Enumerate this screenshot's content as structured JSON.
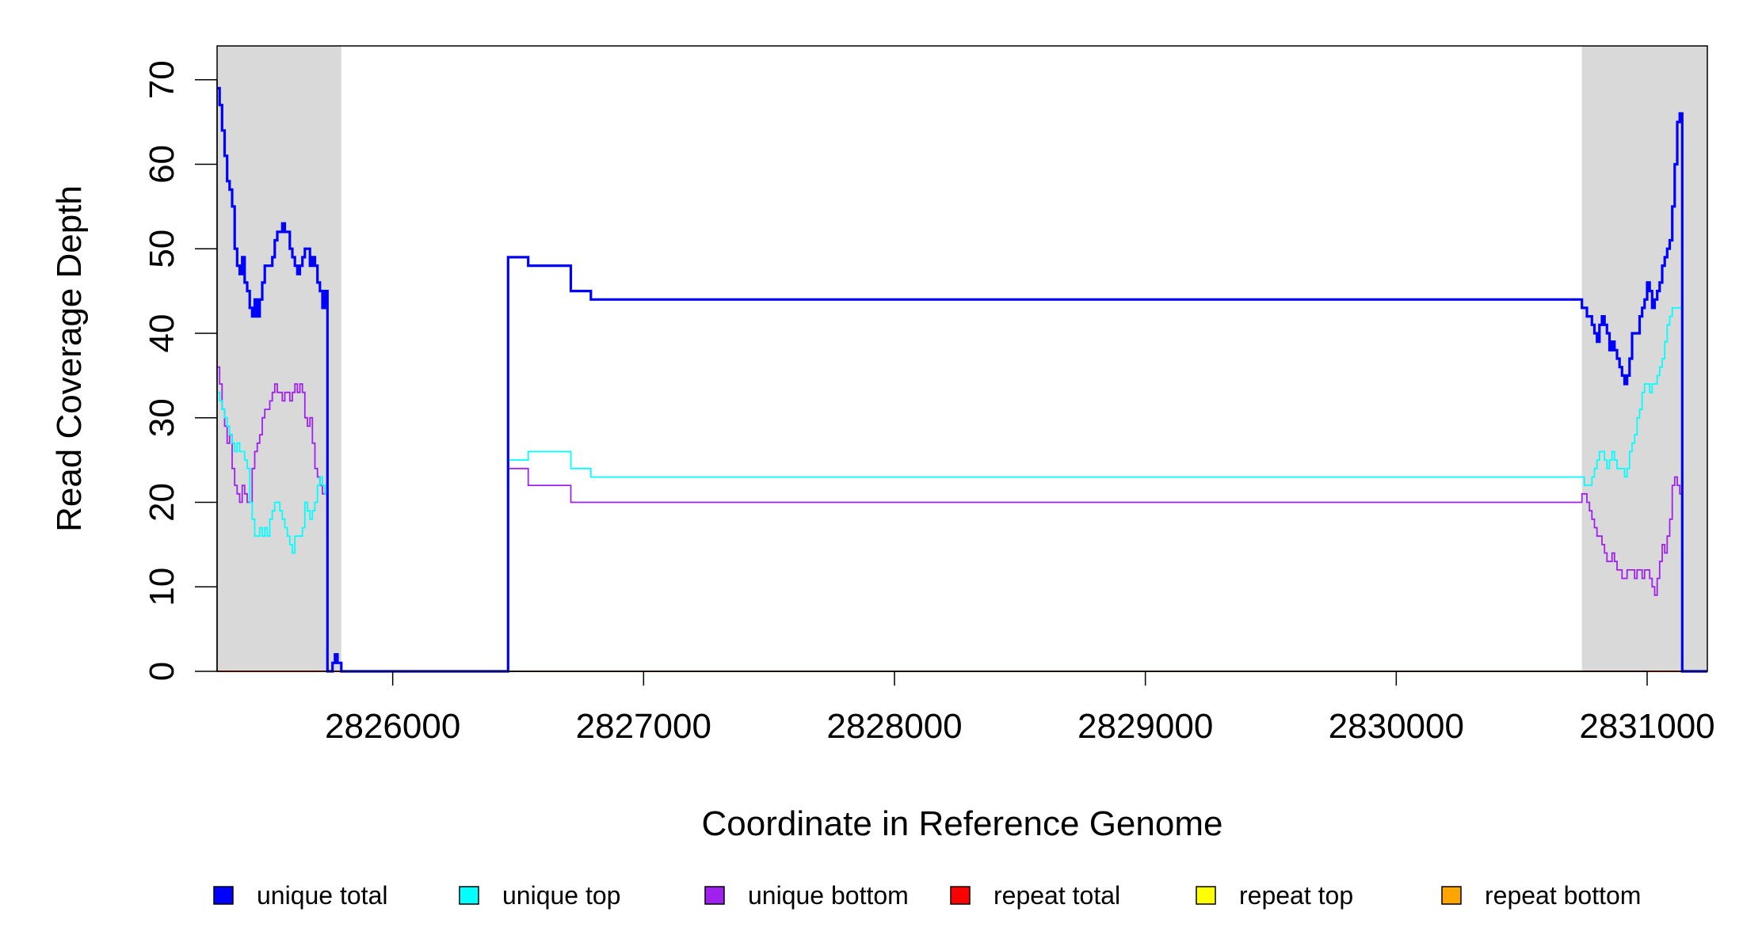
{
  "chart_data": {
    "type": "line",
    "xlabel": "Coordinate in Reference Genome",
    "ylabel": "Read Coverage Depth",
    "xlim": [
      2825300,
      2831240
    ],
    "ylim": [
      0,
      74
    ],
    "x_ticks": [
      2826000,
      2827000,
      2828000,
      2829000,
      2830000,
      2831000
    ],
    "y_ticks": [
      0,
      10,
      20,
      30,
      40,
      50,
      60,
      70
    ],
    "shaded_regions": [
      {
        "start": 2825300,
        "end": 2825795
      },
      {
        "start": 2830740,
        "end": 2831240
      }
    ],
    "colors": {
      "shade": "#d9d9d9",
      "unique_total": "#0000ff",
      "unique_top": "#00ffff",
      "unique_bottom": "#a020f0",
      "repeat_total": "#ff0000",
      "repeat_top": "#ffff00",
      "repeat_bottom": "#ffa500"
    },
    "legend": [
      {
        "label": "unique total",
        "color": "#0000ff"
      },
      {
        "label": "unique top",
        "color": "#00ffff"
      },
      {
        "label": "unique bottom",
        "color": "#a020f0"
      },
      {
        "label": "repeat total",
        "color": "#ff0000"
      },
      {
        "label": "repeat top",
        "color": "#ffff00"
      },
      {
        "label": "repeat bottom",
        "color": "#ffa500"
      }
    ],
    "series": [
      {
        "name": "unique total",
        "color": "#0000ff",
        "x": [
          2825300,
          2825310,
          2825320,
          2825330,
          2825340,
          2825350,
          2825360,
          2825370,
          2825380,
          2825390,
          2825400,
          2825410,
          2825420,
          2825430,
          2825440,
          2825450,
          2825460,
          2825470,
          2825480,
          2825490,
          2825500,
          2825510,
          2825520,
          2825530,
          2825540,
          2825550,
          2825560,
          2825570,
          2825580,
          2825590,
          2825600,
          2825610,
          2825620,
          2825630,
          2825640,
          2825650,
          2825660,
          2825670,
          2825680,
          2825690,
          2825700,
          2825710,
          2825720,
          2825730,
          2825740,
          2825750,
          2825760,
          2825770,
          2825780,
          2825795,
          2826460,
          2826540,
          2826710,
          2826790,
          2830740,
          2830750,
          2830760,
          2830770,
          2830780,
          2830790,
          2830800,
          2830810,
          2830820,
          2830830,
          2830840,
          2830850,
          2830860,
          2830870,
          2830880,
          2830890,
          2830900,
          2830910,
          2830920,
          2830930,
          2830940,
          2830950,
          2830960,
          2830970,
          2830980,
          2830990,
          2831000,
          2831010,
          2831020,
          2831030,
          2831040,
          2831050,
          2831060,
          2831070,
          2831080,
          2831090,
          2831100,
          2831110,
          2831120,
          2831130,
          2831140,
          2831150,
          2831160,
          2831170,
          2831180,
          2831190,
          2831200,
          2831210,
          2831220,
          2831230
        ],
        "y": [
          69,
          67,
          64,
          61,
          58,
          57,
          55,
          50,
          48,
          47,
          49,
          46,
          45,
          43,
          42,
          44,
          42,
          44,
          46,
          48,
          48,
          48,
          49,
          51,
          52,
          52,
          53,
          52,
          52,
          50,
          49,
          48,
          47,
          48,
          49,
          50,
          50,
          48,
          49,
          48,
          46,
          45,
          43,
          45,
          0,
          0,
          1,
          2,
          1,
          0,
          49,
          48,
          45,
          44,
          43,
          43,
          42,
          42,
          41,
          40,
          39,
          41,
          42,
          41,
          40,
          38,
          39,
          38,
          37,
          36,
          35,
          34,
          35,
          37,
          40,
          40,
          40,
          42,
          43,
          44,
          46,
          45,
          43,
          44,
          45,
          46,
          48,
          49,
          50,
          51,
          55,
          60,
          65,
          66,
          0,
          0,
          0,
          0,
          0,
          0,
          0,
          0,
          0,
          0
        ]
      },
      {
        "name": "unique top",
        "color": "#00ffff",
        "x": [
          2825300,
          2825310,
          2825320,
          2825330,
          2825340,
          2825350,
          2825360,
          2825370,
          2825380,
          2825390,
          2825400,
          2825410,
          2825420,
          2825430,
          2825440,
          2825450,
          2825460,
          2825470,
          2825480,
          2825490,
          2825500,
          2825510,
          2825520,
          2825530,
          2825540,
          2825550,
          2825560,
          2825570,
          2825580,
          2825590,
          2825600,
          2825610,
          2825620,
          2825630,
          2825640,
          2825650,
          2825660,
          2825670,
          2825680,
          2825690,
          2825700,
          2825710,
          2825720,
          2825730,
          2825740,
          2825750,
          2825760,
          2825770,
          2825780,
          2825795,
          2826460,
          2826540,
          2826710,
          2826790,
          2830740,
          2830750,
          2830760,
          2830770,
          2830780,
          2830790,
          2830800,
          2830810,
          2830820,
          2830830,
          2830840,
          2830850,
          2830860,
          2830870,
          2830880,
          2830890,
          2830900,
          2830910,
          2830920,
          2830930,
          2830940,
          2830950,
          2830960,
          2830970,
          2830980,
          2830990,
          2831000,
          2831010,
          2831020,
          2831030,
          2831040,
          2831050,
          2831060,
          2831070,
          2831080,
          2831090,
          2831100,
          2831110,
          2831120,
          2831130,
          2831140,
          2831150,
          2831160,
          2831170,
          2831180,
          2831190,
          2831200,
          2831210,
          2831220,
          2831230
        ],
        "y": [
          33,
          32,
          31,
          30,
          29,
          28,
          27,
          26,
          27,
          26,
          26,
          25,
          24,
          20,
          18,
          16,
          16,
          17,
          16,
          17,
          16,
          18,
          19,
          20,
          20,
          19,
          18,
          17,
          16,
          15,
          14,
          16,
          16,
          16,
          17,
          20,
          19,
          18,
          19,
          20,
          22,
          23,
          22,
          21,
          0,
          0,
          1,
          1,
          1,
          0,
          25,
          26,
          24,
          23,
          23,
          22,
          22,
          22,
          23,
          24,
          25,
          26,
          26,
          25,
          24,
          25,
          26,
          25,
          24,
          24,
          24,
          23,
          24,
          26,
          27,
          28,
          30,
          31,
          33,
          34,
          34,
          33,
          34,
          34,
          35,
          36,
          37,
          39,
          41,
          42,
          43,
          43,
          43,
          43,
          0,
          0,
          0,
          0,
          0,
          0,
          0,
          0,
          0,
          0
        ]
      },
      {
        "name": "unique bottom",
        "color": "#a020f0",
        "x": [
          2825300,
          2825310,
          2825320,
          2825330,
          2825340,
          2825350,
          2825360,
          2825370,
          2825380,
          2825390,
          2825400,
          2825410,
          2825420,
          2825430,
          2825440,
          2825450,
          2825460,
          2825470,
          2825480,
          2825490,
          2825500,
          2825510,
          2825520,
          2825530,
          2825540,
          2825550,
          2825560,
          2825570,
          2825580,
          2825590,
          2825600,
          2825610,
          2825620,
          2825630,
          2825640,
          2825650,
          2825660,
          2825670,
          2825680,
          2825690,
          2825700,
          2825710,
          2825720,
          2825730,
          2825740,
          2825750,
          2825760,
          2825770,
          2825780,
          2825795,
          2826460,
          2826540,
          2826710,
          2826790,
          2830740,
          2830750,
          2830760,
          2830770,
          2830780,
          2830790,
          2830800,
          2830810,
          2830820,
          2830830,
          2830840,
          2830850,
          2830860,
          2830870,
          2830880,
          2830890,
          2830900,
          2830910,
          2830920,
          2830930,
          2830940,
          2830950,
          2830960,
          2830970,
          2830980,
          2830990,
          2831000,
          2831010,
          2831020,
          2831030,
          2831040,
          2831050,
          2831060,
          2831070,
          2831080,
          2831090,
          2831100,
          2831110,
          2831120,
          2831130,
          2831140,
          2831150,
          2831160,
          2831170,
          2831180,
          2831190,
          2831200,
          2831210,
          2831220,
          2831230
        ],
        "y": [
          36,
          34,
          31,
          29,
          27,
          28,
          24,
          22,
          21,
          20,
          22,
          21,
          20,
          20,
          24,
          26,
          27,
          28,
          30,
          31,
          31,
          32,
          33,
          34,
          33,
          33,
          32,
          33,
          33,
          32,
          33,
          34,
          33,
          34,
          33,
          30,
          29,
          30,
          27,
          24,
          23,
          22,
          21,
          21,
          0,
          0,
          1,
          1,
          1,
          0,
          24,
          22,
          20,
          20,
          21,
          21,
          20,
          19,
          18,
          17,
          16,
          16,
          15,
          14,
          13,
          13,
          14,
          13,
          12,
          12,
          11,
          11,
          12,
          12,
          12,
          11,
          12,
          12,
          11,
          12,
          12,
          11,
          10,
          9,
          11,
          13,
          15,
          14,
          16,
          18,
          22,
          23,
          22,
          21,
          0,
          0,
          0,
          0,
          0,
          0,
          0,
          0,
          0,
          0
        ]
      },
      {
        "name": "repeat total",
        "color": "#ff0000",
        "x": [
          2825300,
          2831240
        ],
        "y": [
          0,
          0
        ]
      },
      {
        "name": "repeat top",
        "color": "#ffff00",
        "x": [
          2825300,
          2831240
        ],
        "y": [
          0,
          0
        ]
      },
      {
        "name": "repeat bottom",
        "color": "#ffa500",
        "x": [
          2825300,
          2831240
        ],
        "y": [
          0,
          0
        ]
      }
    ]
  }
}
